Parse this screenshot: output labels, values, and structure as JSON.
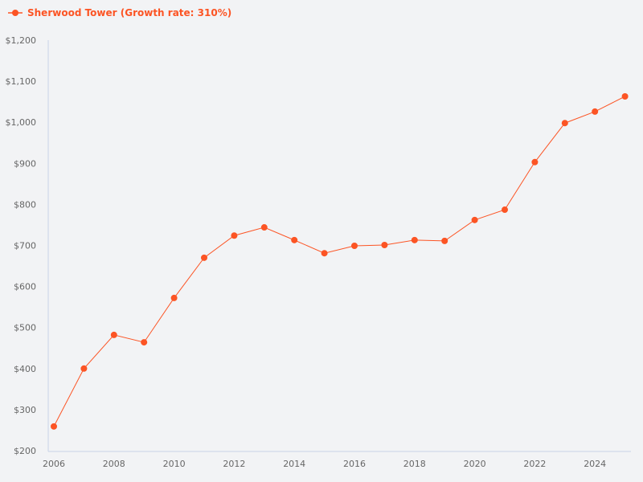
{
  "chart_data": {
    "type": "line",
    "title": "",
    "xlabel": "",
    "ylabel": "",
    "ylim": [
      200,
      1200
    ],
    "xlim": [
      2006,
      2025
    ],
    "y_ticks": [
      "$200",
      "$300",
      "$400",
      "$500",
      "$600",
      "$700",
      "$800",
      "$900",
      "$1,000",
      "$1,100",
      "$1,200"
    ],
    "x_ticks": [
      "2006",
      "2008",
      "2010",
      "2012",
      "2014",
      "2016",
      "2018",
      "2020",
      "2022",
      "2024"
    ],
    "grid": false,
    "legend_position": "top-left",
    "series": [
      {
        "name": "Sherwood Tower (Growth rate: 310%)",
        "color": "#fc5424",
        "x": [
          2006,
          2007,
          2008,
          2009,
          2010,
          2011,
          2012,
          2013,
          2014,
          2015,
          2016,
          2017,
          2018,
          2019,
          2020,
          2021,
          2022,
          2023,
          2024,
          2025
        ],
        "values": [
          259,
          400,
          482,
          464,
          572,
          670,
          724,
          744,
          713,
          681,
          699,
          701,
          713,
          711,
          762,
          787,
          903,
          998,
          1026,
          1063
        ]
      }
    ]
  }
}
